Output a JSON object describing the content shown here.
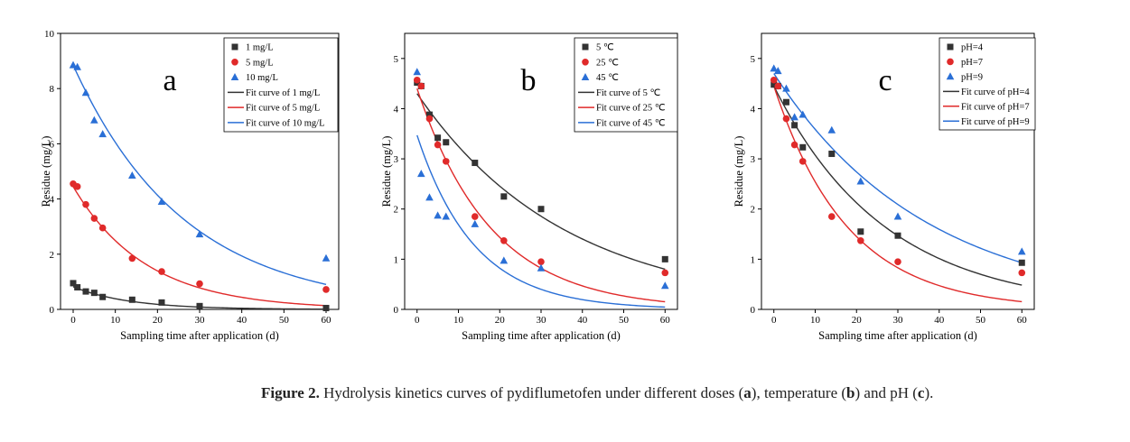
{
  "colors": {
    "s1": "#333333",
    "s2": "#e02a2a",
    "s3": "#2a6fd6"
  },
  "caption": {
    "figure_label": "Figure 2.",
    "part1": " Hydrolysis kinetics curves of pydiflumetofen under different doses (",
    "a": "a",
    "part2": "), temperature (",
    "b": "b",
    "part3": ") and pH (",
    "c": "c",
    "part4": ")."
  },
  "chart_data": [
    {
      "type": "scatter",
      "panel_label": "a",
      "xlabel": "Sampling time after application (d)",
      "ylabel": "Residue (mg/L)",
      "xlim": [
        -3,
        63
      ],
      "ylim": [
        0,
        10
      ],
      "xticks": [
        0,
        10,
        20,
        30,
        40,
        50,
        60
      ],
      "yticks": [
        0,
        2,
        4,
        6,
        8,
        10
      ],
      "legend_position": "top-right",
      "series": [
        {
          "name": "1 mg/L",
          "marker": "square",
          "color": "#333333",
          "x": [
            0,
            1,
            3,
            5,
            7,
            14,
            21,
            30,
            60
          ],
          "y": [
            0.95,
            0.8,
            0.65,
            0.6,
            0.45,
            0.35,
            0.25,
            0.12,
            0.05
          ]
        },
        {
          "name": "5 mg/L",
          "marker": "circle",
          "color": "#e02a2a",
          "x": [
            0,
            1,
            3,
            5,
            7,
            14,
            21,
            30,
            60
          ],
          "y": [
            4.55,
            4.45,
            3.8,
            3.3,
            2.95,
            1.85,
            1.37,
            0.93,
            0.72
          ]
        },
        {
          "name": "10 mg/L",
          "marker": "triangle",
          "color": "#2a6fd6",
          "x": [
            0,
            1,
            3,
            5,
            7,
            14,
            21,
            30,
            60
          ],
          "y": [
            8.85,
            8.78,
            7.85,
            6.85,
            6.35,
            4.85,
            3.9,
            2.72,
            1.85
          ]
        }
      ],
      "fits": [
        {
          "name": "Fit curve of 1 mg/L",
          "color": "#333333",
          "c0": 0.82,
          "k": 0.075
        },
        {
          "name": "Fit curve of 5 mg/L",
          "color": "#e02a2a",
          "c0": 4.45,
          "k": 0.058
        },
        {
          "name": "Fit curve of 10 mg/L",
          "color": "#2a6fd6",
          "c0": 8.85,
          "k": 0.038
        }
      ]
    },
    {
      "type": "scatter",
      "panel_label": "b",
      "xlabel": "Sampling time after application (d)",
      "ylabel": "Residue (mg/L)",
      "xlim": [
        -3,
        63
      ],
      "ylim": [
        0,
        5.5
      ],
      "xticks": [
        0,
        10,
        20,
        30,
        40,
        50,
        60
      ],
      "yticks": [
        0,
        1,
        2,
        3,
        4,
        5
      ],
      "legend_position": "top-right",
      "series": [
        {
          "name": "5 ℃",
          "marker": "square",
          "color": "#333333",
          "x": [
            0,
            1,
            3,
            5,
            7,
            14,
            21,
            30,
            60
          ],
          "y": [
            4.52,
            4.45,
            3.88,
            3.42,
            3.33,
            2.92,
            2.25,
            2.0,
            1.0
          ]
        },
        {
          "name": "25 ℃",
          "marker": "circle",
          "color": "#e02a2a",
          "x": [
            0,
            1,
            3,
            5,
            7,
            14,
            21,
            30,
            60
          ],
          "y": [
            4.57,
            4.45,
            3.8,
            3.28,
            2.95,
            1.85,
            1.37,
            0.95,
            0.73
          ]
        },
        {
          "name": "45 ℃",
          "marker": "triangle",
          "color": "#2a6fd6",
          "x": [
            0,
            1,
            3,
            5,
            7,
            14,
            21,
            30,
            60
          ],
          "y": [
            4.73,
            2.7,
            2.23,
            1.87,
            1.85,
            1.7,
            0.97,
            0.82,
            0.47
          ]
        }
      ],
      "fits": [
        {
          "name": "Fit curve of 5 ℃",
          "color": "#333333",
          "c0": 4.3,
          "k": 0.028
        },
        {
          "name": "Fit curve of 25 ℃",
          "color": "#e02a2a",
          "c0": 4.4,
          "k": 0.056
        },
        {
          "name": "Fit curve of 45 ℃",
          "color": "#2a6fd6",
          "c0": 3.47,
          "k": 0.072
        }
      ]
    },
    {
      "type": "scatter",
      "panel_label": "c",
      "xlabel": "Sampling time after application (d)",
      "ylabel": "Residue (mg/L)",
      "xlim": [
        -3,
        63
      ],
      "ylim": [
        0,
        5.5
      ],
      "xticks": [
        0,
        10,
        20,
        30,
        40,
        50,
        60
      ],
      "yticks": [
        0,
        1,
        2,
        3,
        4,
        5
      ],
      "legend_position": "top-right",
      "series": [
        {
          "name": "pH=4",
          "marker": "square",
          "color": "#333333",
          "x": [
            0,
            1,
            3,
            5,
            7,
            14,
            21,
            30,
            60
          ],
          "y": [
            4.48,
            4.45,
            4.13,
            3.67,
            3.23,
            3.1,
            1.55,
            1.47,
            0.93
          ]
        },
        {
          "name": "pH=7",
          "marker": "circle",
          "color": "#e02a2a",
          "x": [
            0,
            1,
            3,
            5,
            7,
            14,
            21,
            30,
            60
          ],
          "y": [
            4.57,
            4.45,
            3.8,
            3.28,
            2.95,
            1.85,
            1.37,
            0.95,
            0.73
          ]
        },
        {
          "name": "pH=9",
          "marker": "triangle",
          "color": "#2a6fd6",
          "x": [
            0,
            1,
            3,
            5,
            7,
            14,
            21,
            30,
            60
          ],
          "y": [
            4.8,
            4.75,
            4.4,
            3.83,
            3.88,
            3.57,
            2.55,
            1.85,
            1.15
          ]
        }
      ],
      "fits": [
        {
          "name": "Fit curve of pH=4",
          "color": "#333333",
          "c0": 4.45,
          "k": 0.037
        },
        {
          "name": "Fit curve of pH=7",
          "color": "#e02a2a",
          "c0": 4.45,
          "k": 0.056
        },
        {
          "name": "Fit curve of pH=9",
          "color": "#2a6fd6",
          "c0": 4.7,
          "k": 0.027
        }
      ]
    }
  ]
}
